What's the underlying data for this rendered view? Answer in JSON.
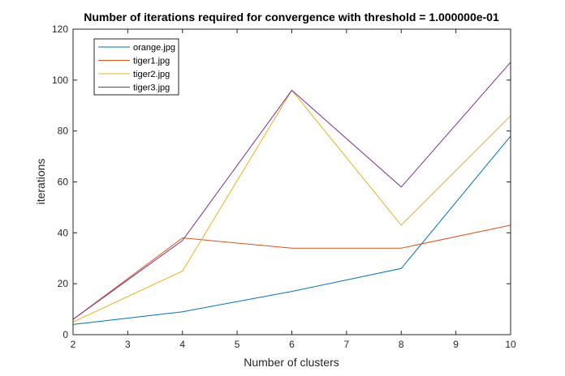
{
  "chart_data": {
    "type": "line",
    "title": "Number of iterations required for convergence with threshold = 1.000000e-01",
    "xlabel": "Number of clusters",
    "ylabel": "iterations",
    "xlim": [
      2,
      10
    ],
    "ylim": [
      0,
      120
    ],
    "xticks": [
      "2",
      "3",
      "4",
      "5",
      "6",
      "7",
      "8",
      "9",
      "10"
    ],
    "yticks": [
      "0",
      "20",
      "40",
      "60",
      "80",
      "100",
      "120"
    ],
    "x": [
      2,
      4,
      6,
      8,
      10
    ],
    "series": [
      {
        "name": "orange.jpg",
        "color": "#0072BD",
        "values": [
          4,
          9,
          17,
          26,
          78
        ]
      },
      {
        "name": "tiger1.jpg",
        "color": "#D95319",
        "values": [
          6,
          38,
          34,
          34,
          43
        ]
      },
      {
        "name": "tiger2.jpg",
        "color": "#EDB120",
        "values": [
          5,
          25,
          96,
          43,
          86
        ]
      },
      {
        "name": "tiger3.jpg",
        "color": "#7E2F8E",
        "values": [
          6,
          37,
          96,
          58,
          107
        ]
      }
    ],
    "grid": false,
    "legend_position": "top-left"
  }
}
